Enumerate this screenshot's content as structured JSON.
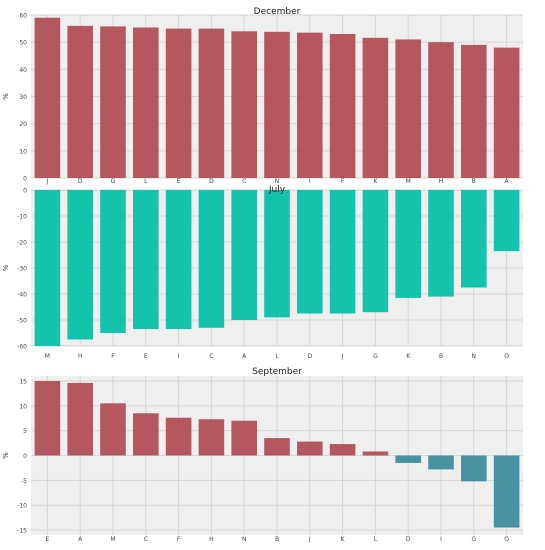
{
  "chart_data": [
    {
      "type": "bar",
      "title": "December",
      "ylabel": "%",
      "xlabel": "",
      "ylim": [
        0,
        60
      ],
      "yticks": [
        0,
        10,
        20,
        30,
        40,
        50,
        60
      ],
      "categories": [
        "J",
        "D",
        "G",
        "L",
        "E",
        "D",
        "C",
        "N",
        "I",
        "F",
        "K",
        "M",
        "H",
        "B",
        "A"
      ],
      "values": [
        59,
        56,
        55.8,
        55.4,
        55,
        55,
        54,
        53.8,
        53.5,
        53,
        51.6,
        51,
        50,
        49,
        48
      ],
      "grid": true,
      "colors": {
        "positive": "#b04a52"
      }
    },
    {
      "type": "bar",
      "title": "July",
      "ylabel": "%",
      "xlabel": "",
      "ylim": [
        -60,
        0
      ],
      "yticks": [
        -60,
        -50,
        -40,
        -30,
        -20,
        -10,
        0
      ],
      "categories": [
        "M",
        "H",
        "F",
        "E",
        "I",
        "C",
        "A",
        "L",
        "D",
        "J",
        "G",
        "K",
        "B",
        "N",
        "O"
      ],
      "values": [
        -60,
        -57.5,
        -55,
        -53.5,
        -53.5,
        -53,
        -50,
        -49,
        -47.5,
        -47.5,
        -47,
        -41.5,
        -41,
        -37.5,
        -23.5
      ],
      "grid": true,
      "colors": {
        "negative": "#00bfa5"
      }
    },
    {
      "type": "bar",
      "title": "September",
      "ylabel": "%",
      "xlabel": "",
      "ylim": [
        -16,
        16
      ],
      "yticks": [
        -15,
        -10,
        -5,
        0,
        5,
        10,
        15
      ],
      "categories": [
        "E",
        "A",
        "M",
        "C",
        "F",
        "H",
        "N",
        "B",
        "J",
        "K",
        "L",
        "D",
        "I",
        "G",
        "O"
      ],
      "values": [
        15,
        14.6,
        10.5,
        8.5,
        7.6,
        7.3,
        7,
        3.5,
        2.8,
        2.3,
        0.8,
        -1.5,
        -2.8,
        -5.2,
        -14.5
      ],
      "grid": true,
      "colors": {
        "positive": "#b04a52",
        "negative": "#3a8a9a"
      }
    }
  ]
}
